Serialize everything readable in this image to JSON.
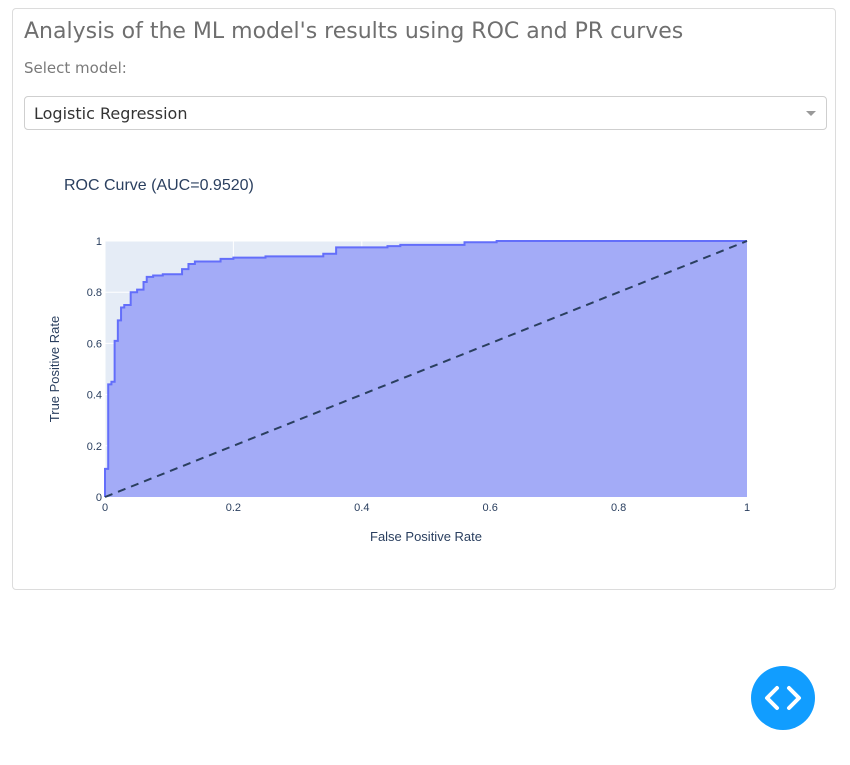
{
  "header": {
    "title": "Analysis of the ML model's results using ROC and PR curves"
  },
  "model_select": {
    "label": "Select model:",
    "selected": "Logistic Regression"
  },
  "fab": {
    "icon": "code-icon",
    "color": "#119dff"
  },
  "chart_data": {
    "type": "area",
    "title": "ROC Curve (AUC=0.9520)",
    "xlabel": "False Positive Rate",
    "ylabel": "True Positive Rate",
    "xlim": [
      0,
      1
    ],
    "ylim": [
      0,
      1
    ],
    "xticks": [
      "0",
      "0.2",
      "0.4",
      "0.6",
      "0.8",
      "1"
    ],
    "yticks": [
      "0",
      "0.2",
      "0.4",
      "0.6",
      "0.8",
      "1"
    ],
    "grid": true,
    "series": [
      {
        "x": [
          0,
          0,
          0.005,
          0.005,
          0.01,
          0.01,
          0.015,
          0.015,
          0.02,
          0.02,
          0.025,
          0.025,
          0.03,
          0.03,
          0.04,
          0.04,
          0.05,
          0.05,
          0.06,
          0.06,
          0.065,
          0.065,
          0.075,
          0.075,
          0.09,
          0.09,
          0.12,
          0.12,
          0.13,
          0.13,
          0.14,
          0.14,
          0.18,
          0.18,
          0.2,
          0.2,
          0.25,
          0.25,
          0.34,
          0.34,
          0.36,
          0.36,
          0.44,
          0.44,
          0.46,
          0.46,
          0.56,
          0.56,
          0.61,
          0.61,
          1
        ],
        "y": [
          0,
          0.11,
          0.11,
          0.44,
          0.44,
          0.45,
          0.45,
          0.61,
          0.61,
          0.69,
          0.69,
          0.74,
          0.74,
          0.75,
          0.75,
          0.8,
          0.8,
          0.81,
          0.81,
          0.84,
          0.84,
          0.86,
          0.86,
          0.865,
          0.865,
          0.87,
          0.87,
          0.89,
          0.89,
          0.91,
          0.91,
          0.92,
          0.92,
          0.93,
          0.93,
          0.935,
          0.935,
          0.94,
          0.94,
          0.95,
          0.95,
          0.975,
          0.975,
          0.98,
          0.98,
          0.985,
          0.985,
          0.995,
          0.995,
          1,
          1
        ],
        "color": "#636efa",
        "fill": "#a3abf7"
      },
      {
        "x": [
          0,
          1
        ],
        "y": [
          0,
          1
        ],
        "style": "dashed",
        "color": "#2a3f5f"
      }
    ]
  }
}
